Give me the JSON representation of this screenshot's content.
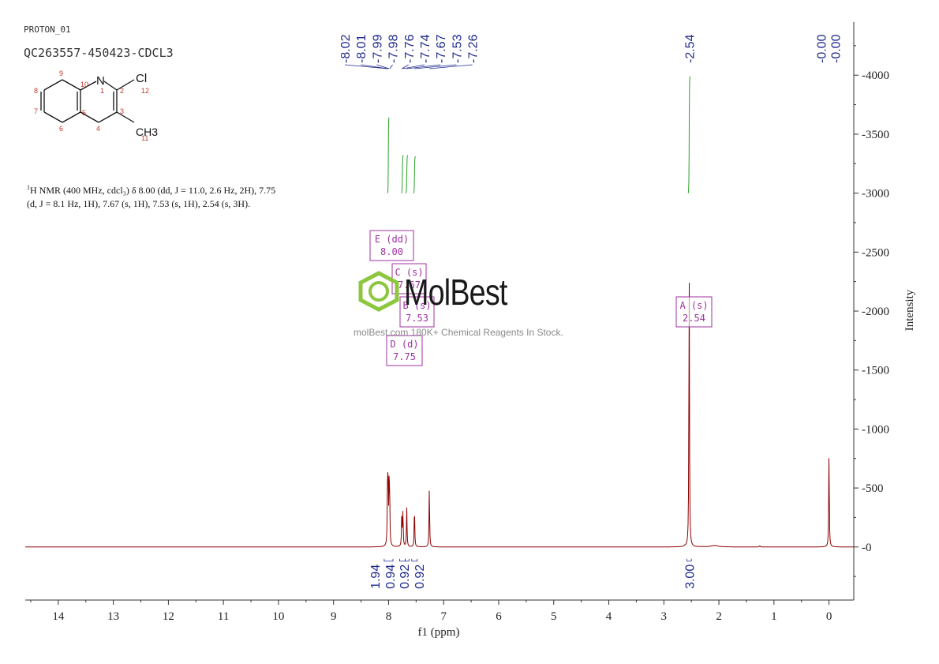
{
  "header": {
    "experiment": "PROTON_01",
    "sample": "QC263557-450423-CDCL3"
  },
  "description": {
    "line1_prefix": "1",
    "line1": "H NMR (400 MHz, cdcl₃) δ 8.00 (dd, J = 11.0, 2.6 Hz, 2H), 7.75",
    "line2": "(d, J = 8.1 Hz, 1H), 7.67 (s, 1H), 7.53 (s, 1H), 2.54 (s, 3H)."
  },
  "molecule": {
    "atoms": [
      "N",
      "Cl",
      "CH3"
    ],
    "numbers": [
      "1",
      "2",
      "3",
      "4",
      "5",
      "6",
      "7",
      "8",
      "9",
      "10",
      "11",
      "12"
    ]
  },
  "watermark": {
    "brand": "MolBest",
    "tagline": "molBest.com 180K+ Chemical Reagents In Stock."
  },
  "colors": {
    "spectrum": "#8b0000",
    "peak_labels": "#1f2a8c",
    "integral": "#2ca02c",
    "multiplet_box": "#a030a0",
    "axis": "#333333"
  },
  "chart_data": {
    "type": "line",
    "title": "",
    "xlabel": "f1 (ppm)",
    "ylabel": "Intensity",
    "xlim": [
      14.6,
      -0.45
    ],
    "ylim": [
      -450,
      4450
    ],
    "x_ticks": [
      "14",
      "13",
      "12",
      "11",
      "10",
      "9",
      "8",
      "7",
      "6",
      "5",
      "4",
      "3",
      "2",
      "1",
      "0"
    ],
    "y_ticks": [
      "0",
      "500",
      "1000",
      "1500",
      "2000",
      "2500",
      "3000",
      "3500",
      "4000"
    ],
    "peaks": [
      {
        "ppm": 8.02,
        "height": 400
      },
      {
        "ppm": 8.01,
        "height": 560
      },
      {
        "ppm": 7.99,
        "height": 540
      },
      {
        "ppm": 7.98,
        "height": 300
      },
      {
        "ppm": 7.76,
        "height": 300
      },
      {
        "ppm": 7.74,
        "height": 290
      },
      {
        "ppm": 7.67,
        "height": 330
      },
      {
        "ppm": 7.53,
        "height": 340
      },
      {
        "ppm": 7.26,
        "height": 500
      },
      {
        "ppm": 2.54,
        "height": 2380
      },
      {
        "ppm": 0.0,
        "height": 800
      }
    ],
    "peak_labels": {
      "aromatic": [
        "8.02",
        "8.01",
        "7.99",
        "7.98",
        "7.76",
        "7.74",
        "7.67",
        "7.53",
        "7.26"
      ],
      "methyl": [
        "2.54"
      ],
      "tms": [
        "0.00",
        "0.00"
      ]
    },
    "integrals": [
      {
        "value": "1.94",
        "from": 8.08,
        "to": 7.92
      },
      {
        "value": "0.94",
        "from": 7.8,
        "to": 7.7
      },
      {
        "value": "0.92",
        "from": 7.7,
        "to": 7.63
      },
      {
        "value": "0.92",
        "from": 7.58,
        "to": 7.48
      },
      {
        "value": "3.00",
        "from": 2.58,
        "to": 2.5
      }
    ],
    "multiplets": [
      {
        "name": "E (dd)",
        "shift": "8.00"
      },
      {
        "name": "C (s)",
        "shift": "7.67"
      },
      {
        "name": "B (s)",
        "shift": "7.53"
      },
      {
        "name": "D (d)",
        "shift": "7.75"
      },
      {
        "name": "A (s)",
        "shift": "2.54"
      }
    ]
  }
}
